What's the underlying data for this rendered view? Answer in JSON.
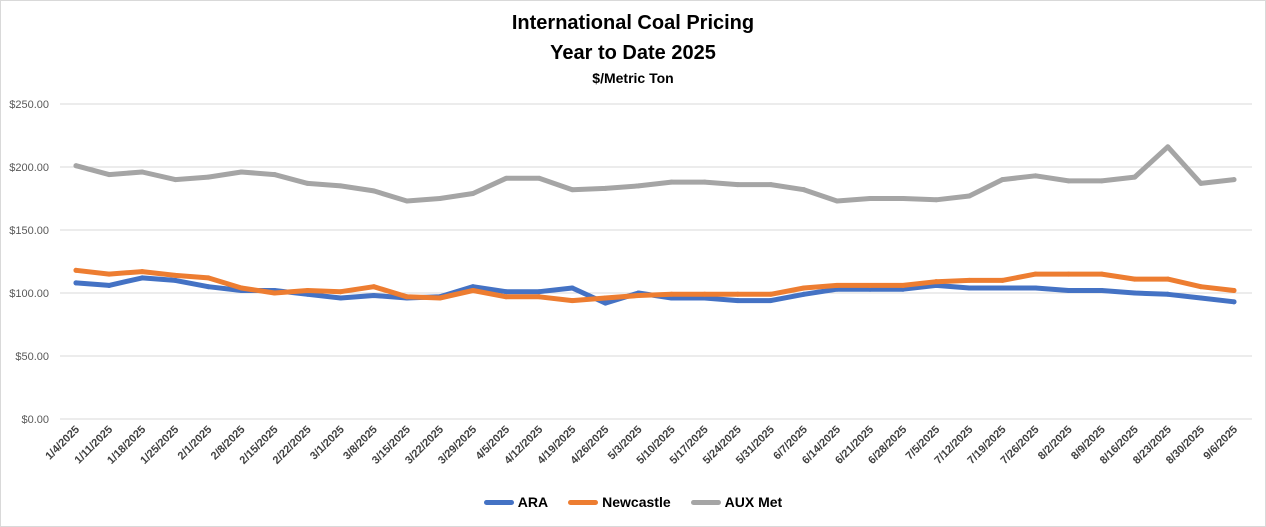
{
  "chart_data": {
    "type": "line",
    "title": "International Coal Pricing",
    "subtitle": "Year to Date 2025",
    "unit_label": "$/Metric Ton",
    "ylim": [
      0,
      250
    ],
    "y_ticks": [
      "$0.00",
      "$50.00",
      "$100.00",
      "$150.00",
      "$200.00",
      "$250.00"
    ],
    "y_tick_values": [
      0,
      50,
      100,
      150,
      200,
      250
    ],
    "grid": true,
    "legend_position": "bottom",
    "categories": [
      "1/4/2025",
      "1/11/2025",
      "1/18/2025",
      "1/25/2025",
      "2/1/2025",
      "2/8/2025",
      "2/15/2025",
      "2/22/2025",
      "3/1/2025",
      "3/8/2025",
      "3/15/2025",
      "3/22/2025",
      "3/29/2025",
      "4/5/2025",
      "4/12/2025",
      "4/19/2025",
      "4/26/2025",
      "5/3/2025",
      "5/10/2025",
      "5/17/2025",
      "5/24/2025",
      "5/31/2025",
      "6/7/2025",
      "6/14/2025",
      "6/21/2025",
      "6/28/2025",
      "7/5/2025",
      "7/12/2025",
      "7/19/2025",
      "7/26/2025",
      "8/2/2025",
      "8/9/2025",
      "8/16/2025",
      "8/23/2025",
      "8/30/2025",
      "9/6/2025"
    ],
    "series": [
      {
        "name": "ARA",
        "color": "#4472C4",
        "values": [
          108,
          106,
          112,
          110,
          105,
          102,
          102,
          99,
          96,
          98,
          96,
          97,
          105,
          101,
          101,
          104,
          92,
          100,
          96,
          96,
          94,
          94,
          99,
          103,
          103,
          103,
          106,
          104,
          104,
          104,
          102,
          102,
          100,
          99,
          96,
          93
        ]
      },
      {
        "name": "Newcastle",
        "color": "#ED7D31",
        "values": [
          118,
          115,
          117,
          114,
          112,
          104,
          100,
          102,
          101,
          105,
          97,
          96,
          102,
          97,
          97,
          94,
          96,
          98,
          99,
          99,
          99,
          99,
          104,
          106,
          106,
          106,
          109,
          110,
          110,
          115,
          115,
          115,
          111,
          111,
          105,
          102
        ]
      },
      {
        "name": "AUX Met",
        "color": "#A5A5A5",
        "values": [
          201,
          194,
          196,
          190,
          192,
          196,
          194,
          187,
          185,
          181,
          173,
          175,
          179,
          191,
          191,
          182,
          183,
          185,
          188,
          188,
          186,
          186,
          182,
          173,
          175,
          175,
          174,
          177,
          190,
          193,
          189,
          189,
          192,
          216,
          187,
          190
        ]
      }
    ]
  }
}
